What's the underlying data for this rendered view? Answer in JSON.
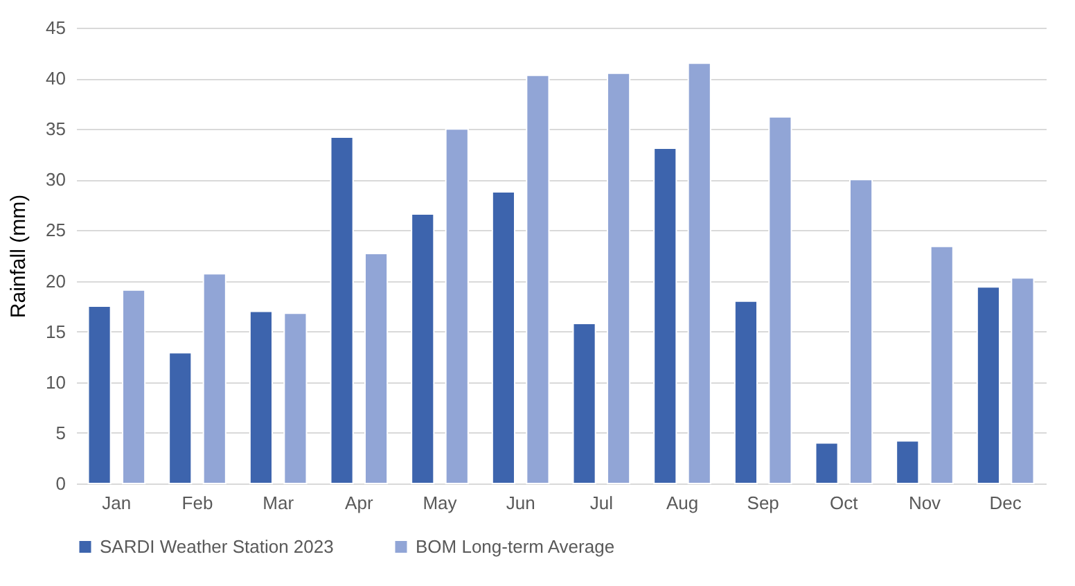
{
  "chart_data": {
    "type": "bar",
    "ylabel": "Rainfall (mm)",
    "categories": [
      "Jan",
      "Feb",
      "Mar",
      "Apr",
      "May",
      "Jun",
      "Jul",
      "Aug",
      "Sep",
      "Oct",
      "Nov",
      "Dec"
    ],
    "series": [
      {
        "name": "SARDI Weather Station 2023",
        "color": "#3d64ad",
        "values": [
          17.5,
          12.9,
          17.0,
          34.2,
          26.6,
          28.8,
          15.8,
          33.1,
          18.0,
          4.0,
          4.2,
          19.4
        ]
      },
      {
        "name": "BOM Long-term Average",
        "color": "#91a5d6",
        "values": [
          19.1,
          20.7,
          16.8,
          22.7,
          35.0,
          40.3,
          40.5,
          41.5,
          36.2,
          30.0,
          23.4,
          20.3
        ]
      }
    ],
    "ylim": [
      0,
      45
    ],
    "yticks": [
      0,
      5,
      10,
      15,
      20,
      25,
      30,
      35,
      40,
      45
    ],
    "grid": "y",
    "legend": "bottom"
  }
}
